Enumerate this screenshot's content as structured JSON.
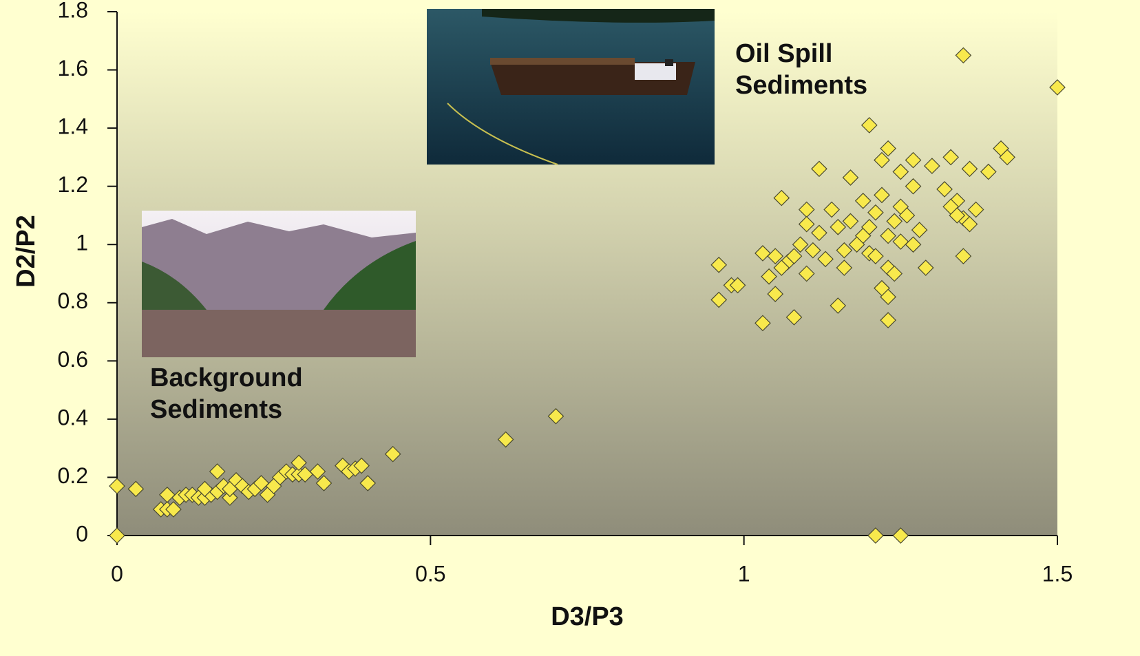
{
  "chart_data": {
    "type": "scatter",
    "xlabel": "D3/P3",
    "ylabel": "D2/P2",
    "annotations": [
      {
        "lines": [
          "Oil Spill",
          "Sediments"
        ]
      },
      {
        "lines": [
          "Background",
          "Sediments"
        ]
      }
    ],
    "xlim": [
      0,
      1.5
    ],
    "ylim": [
      0,
      1.8
    ],
    "xticks": [
      0,
      0.5,
      1,
      1.5
    ],
    "yticks": [
      0,
      0.2,
      0.4,
      0.6,
      0.8,
      1,
      1.2,
      1.4,
      1.6,
      1.8
    ],
    "series": [
      {
        "color": "#f8e94c",
        "edge_color": "#4a4a30",
        "x": [
          0,
          0.03,
          0,
          0.07,
          0.08,
          0.09,
          0.08,
          0.1,
          0.11,
          0.12,
          0.13,
          0.14,
          0.15,
          0.14,
          0.16,
          0.16,
          0.17,
          0.18,
          0.18,
          0.19,
          0.2,
          0.21,
          0.22,
          0.23,
          0.24,
          0.25,
          0.26,
          0.27,
          0.28,
          0.29,
          0.29,
          0.3,
          0.32,
          0.33,
          0.36,
          0.37,
          0.38,
          0.39,
          0.4,
          0.44,
          0.62,
          0.7,
          1.35,
          1.5,
          1.2,
          1.23,
          1.33,
          1.41,
          1.42,
          1.36,
          1.39,
          1.3,
          1.27,
          1.22,
          1.12,
          1.17,
          1.25,
          1.27,
          1.32,
          1.34,
          1.33,
          1.37,
          1.35,
          1.36,
          1.34,
          1.06,
          1.1,
          1.14,
          1.19,
          1.22,
          1.25,
          1.21,
          1.24,
          1.26,
          1.28,
          1.1,
          1.12,
          1.15,
          1.17,
          1.19,
          1.2,
          1.23,
          1.25,
          1.27,
          1.09,
          1.11,
          1.13,
          1.16,
          1.18,
          1.2,
          1.03,
          1.05,
          1.07,
          1.08,
          1.06,
          1.04,
          1.1,
          1.16,
          1.21,
          1.23,
          1.24,
          1.29,
          1.35,
          1.22,
          1.23,
          1.05,
          1.15,
          0.96,
          0.96,
          0.98,
          0.99,
          1.03,
          1.08,
          1.23,
          1.21,
          1.25
        ],
        "values": [
          0.17,
          0.16,
          0,
          0.09,
          0.09,
          0.09,
          0.14,
          0.13,
          0.14,
          0.14,
          0.13,
          0.13,
          0.14,
          0.16,
          0.15,
          0.22,
          0.17,
          0.13,
          0.16,
          0.19,
          0.17,
          0.15,
          0.16,
          0.18,
          0.14,
          0.17,
          0.2,
          0.22,
          0.21,
          0.21,
          0.25,
          0.21,
          0.22,
          0.18,
          0.24,
          0.22,
          0.23,
          0.24,
          0.18,
          0.28,
          0.33,
          0.41,
          1.65,
          1.54,
          1.41,
          1.33,
          1.3,
          1.33,
          1.3,
          1.26,
          1.25,
          1.27,
          1.29,
          1.29,
          1.26,
          1.23,
          1.25,
          1.2,
          1.19,
          1.15,
          1.13,
          1.12,
          1.09,
          1.07,
          1.1,
          1.16,
          1.12,
          1.12,
          1.15,
          1.17,
          1.13,
          1.11,
          1.08,
          1.1,
          1.05,
          1.07,
          1.04,
          1.06,
          1.08,
          1.03,
          1.06,
          1.03,
          1.01,
          1.0,
          1.0,
          0.98,
          0.95,
          0.98,
          1.0,
          0.97,
          0.97,
          0.96,
          0.94,
          0.96,
          0.92,
          0.89,
          0.9,
          0.92,
          0.96,
          0.92,
          0.9,
          0.92,
          0.96,
          0.85,
          0.82,
          0.83,
          0.79,
          0.93,
          0.81,
          0.86,
          0.86,
          0.73,
          0.75,
          0.74,
          0,
          0
        ]
      }
    ]
  }
}
